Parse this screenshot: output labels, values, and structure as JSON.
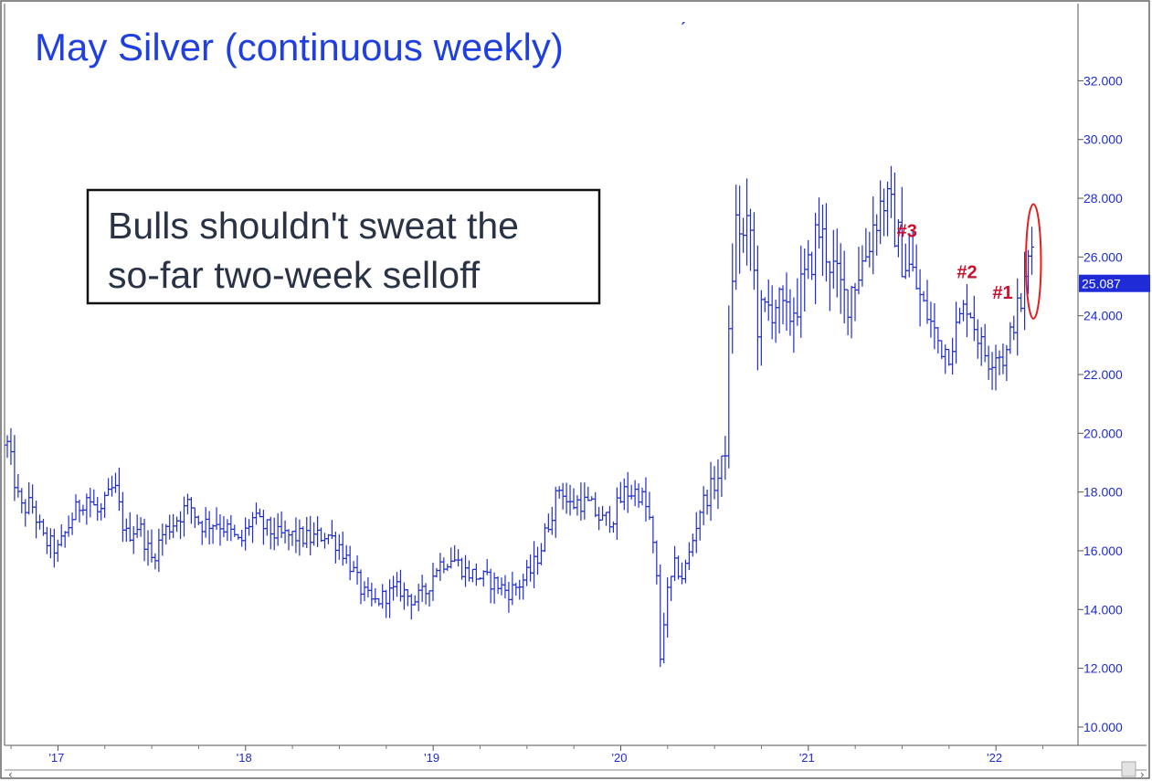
{
  "chart_data": {
    "type": "bar",
    "subtype": "ohlc-weekly",
    "title": "May Silver (continuous weekly)",
    "callout": [
      "Bulls shouldn't sweat the",
      "so-far two-week selloff"
    ],
    "last_value": "25.087",
    "ylim": [
      9.5,
      34.5
    ],
    "yticks": [
      "10.000",
      "12.000",
      "14.000",
      "16.000",
      "18.000",
      "20.000",
      "22.000",
      "24.000",
      "26.000",
      "28.000",
      "30.000",
      "32.000"
    ],
    "xlim": [
      2016.73,
      2022.34
    ],
    "xticks": [
      {
        "label": "'17",
        "x": 2017.0
      },
      {
        "label": "'18",
        "x": 2018.0
      },
      {
        "label": "'19",
        "x": 2019.0
      },
      {
        "label": "'20",
        "x": 2020.0
      },
      {
        "label": "'21",
        "x": 2021.0
      },
      {
        "label": "'22",
        "x": 2022.0
      }
    ],
    "grid": false,
    "series_keypoints": [
      [
        2016.73,
        19.6
      ],
      [
        2016.8,
        17.4
      ],
      [
        2016.86,
        17.6
      ],
      [
        2016.92,
        16.4
      ],
      [
        2017.0,
        16.0
      ],
      [
        2017.08,
        17.2
      ],
      [
        2017.15,
        17.9
      ],
      [
        2017.22,
        17.2
      ],
      [
        2017.3,
        18.2
      ],
      [
        2017.36,
        16.5
      ],
      [
        2017.43,
        16.9
      ],
      [
        2017.5,
        15.7
      ],
      [
        2017.56,
        16.6
      ],
      [
        2017.62,
        17.0
      ],
      [
        2017.7,
        17.6
      ],
      [
        2017.76,
        16.9
      ],
      [
        2017.85,
        17.0
      ],
      [
        2017.92,
        16.6
      ],
      [
        2017.97,
        16.2
      ],
      [
        2018.03,
        17.1
      ],
      [
        2018.1,
        16.8
      ],
      [
        2018.17,
        16.5
      ],
      [
        2018.25,
        16.5
      ],
      [
        2018.35,
        16.4
      ],
      [
        2018.43,
        16.6
      ],
      [
        2018.5,
        16.2
      ],
      [
        2018.56,
        15.5
      ],
      [
        2018.62,
        14.6
      ],
      [
        2018.68,
        14.2
      ],
      [
        2018.75,
        14.5
      ],
      [
        2018.82,
        14.7
      ],
      [
        2018.9,
        14.3
      ],
      [
        2018.96,
        14.6
      ],
      [
        2019.02,
        15.5
      ],
      [
        2019.1,
        15.8
      ],
      [
        2019.17,
        15.3
      ],
      [
        2019.25,
        15.1
      ],
      [
        2019.33,
        14.9
      ],
      [
        2019.4,
        14.6
      ],
      [
        2019.45,
        14.8
      ],
      [
        2019.52,
        15.3
      ],
      [
        2019.57,
        16.0
      ],
      [
        2019.63,
        17.3
      ],
      [
        2019.68,
        18.3
      ],
      [
        2019.72,
        17.5
      ],
      [
        2019.78,
        17.7
      ],
      [
        2019.84,
        17.5
      ],
      [
        2019.9,
        17.0
      ],
      [
        2019.96,
        17.2
      ],
      [
        2020.02,
        18.0
      ],
      [
        2020.1,
        18.0
      ],
      [
        2020.15,
        17.2
      ],
      [
        2020.19,
        15.2
      ],
      [
        2020.21,
        12.3
      ],
      [
        2020.24,
        14.3
      ],
      [
        2020.29,
        15.5
      ],
      [
        2020.33,
        15.1
      ],
      [
        2020.37,
        16.0
      ],
      [
        2020.42,
        17.4
      ],
      [
        2020.47,
        18.0
      ],
      [
        2020.53,
        18.6
      ],
      [
        2020.56,
        19.8
      ],
      [
        2020.58,
        23.8
      ],
      [
        2020.6,
        26.0
      ],
      [
        2020.62,
        27.5
      ],
      [
        2020.65,
        26.5
      ],
      [
        2020.69,
        27.0
      ],
      [
        2020.73,
        23.8
      ],
      [
        2020.78,
        24.2
      ],
      [
        2020.83,
        24.5
      ],
      [
        2020.88,
        23.8
      ],
      [
        2020.94,
        24.5
      ],
      [
        2021.0,
        25.5
      ],
      [
        2021.05,
        27.0
      ],
      [
        2021.1,
        26.2
      ],
      [
        2021.15,
        25.2
      ],
      [
        2021.2,
        24.5
      ],
      [
        2021.25,
        25.3
      ],
      [
        2021.3,
        26.0
      ],
      [
        2021.35,
        27.2
      ],
      [
        2021.4,
        28.0
      ],
      [
        2021.45,
        27.3
      ],
      [
        2021.5,
        26.0
      ],
      [
        2021.55,
        25.5
      ],
      [
        2021.6,
        24.5
      ],
      [
        2021.65,
        23.8
      ],
      [
        2021.7,
        23.0
      ],
      [
        2021.75,
        22.8
      ],
      [
        2021.8,
        23.8
      ],
      [
        2021.85,
        24.5
      ],
      [
        2021.88,
        23.8
      ],
      [
        2021.92,
        23.0
      ],
      [
        2021.96,
        22.5
      ],
      [
        2022.0,
        22.8
      ],
      [
        2022.05,
        22.5
      ],
      [
        2022.1,
        24.0
      ],
      [
        2022.14,
        24.5
      ],
      [
        2022.17,
        25.8
      ],
      [
        2022.19,
        26.5
      ],
      [
        2022.21,
        25.087
      ]
    ],
    "annotations": [
      {
        "text": "#3",
        "x": 2021.53,
        "y": 26.9
      },
      {
        "text": "#2",
        "x": 2021.85,
        "y": 25.5
      },
      {
        "text": "#1",
        "x": 2022.04,
        "y": 24.8
      }
    ],
    "highlight": {
      "type": "ellipse",
      "x": 2022.2,
      "y": 25.85,
      "rx_years": 0.04,
      "ry_data": 1.95,
      "color": "#e32020"
    },
    "colors": {
      "bars": "#1f2bd6",
      "axis": "#333333",
      "annotation": "#c8102e",
      "price_tag": "#1f2bd6"
    }
  }
}
